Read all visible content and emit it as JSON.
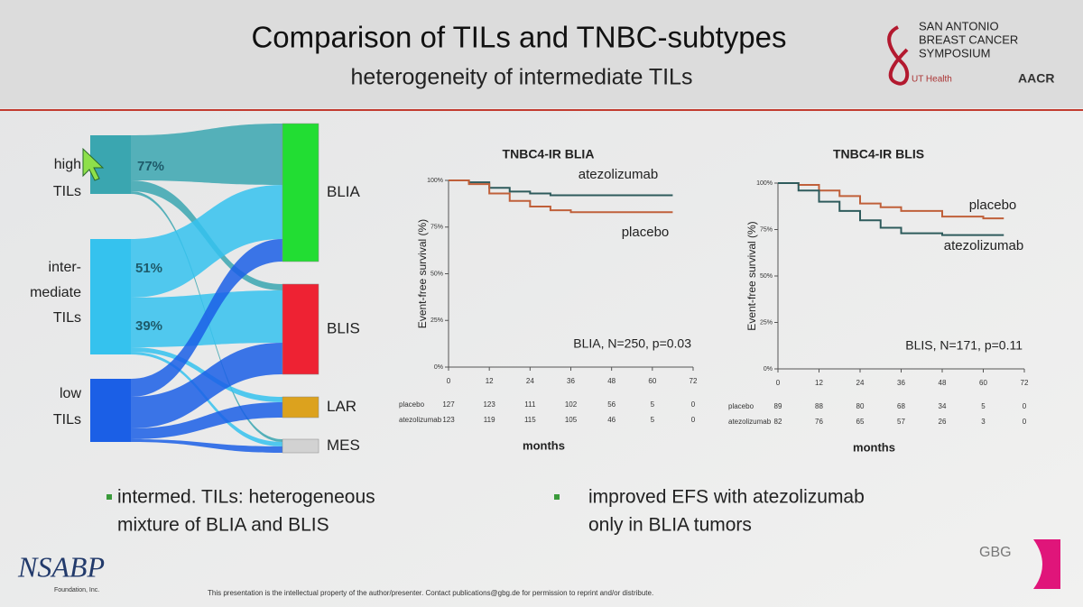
{
  "header": {
    "title": "Comparison of TILs and TNBC-subtypes",
    "subtitle": "heterogeneity of intermediate TILs",
    "logo_lines": [
      "SAN ANTONIO",
      "BREAST CANCER",
      "SYMPOSIUM"
    ],
    "partner_logos": [
      "UT Health",
      "AACR"
    ]
  },
  "sankey": {
    "sources": [
      {
        "lines": [
          "high",
          "TILs"
        ],
        "percent": "77%"
      },
      {
        "lines": [
          "inter-",
          "mediate",
          "TILs"
        ],
        "percent": "51%",
        "percent2": "39%"
      },
      {
        "lines": [
          "low",
          "TILs"
        ]
      }
    ],
    "targets": [
      "BLIA",
      "BLIS",
      "LAR",
      "MES"
    ]
  },
  "charts": [
    {
      "type": "line",
      "title": "TNBC4-IR BLIA",
      "ylabel": "Event-free survival (%)",
      "xlabel": "months",
      "annotation": "BLIA, N=250, p=0.03",
      "xlim": [
        0,
        72
      ],
      "ylim": [
        0,
        100
      ],
      "xticks": [
        0,
        12,
        24,
        36,
        48,
        60,
        72
      ],
      "yticks": [
        {
          "value": 0,
          "label": "0%"
        },
        {
          "value": 25,
          "label": "25%"
        },
        {
          "value": 50,
          "label": "50%"
        },
        {
          "value": 75,
          "label": "75%"
        },
        {
          "value": 100,
          "label": "100%"
        }
      ],
      "x": [
        0,
        6,
        12,
        18,
        24,
        30,
        36,
        48,
        60,
        66
      ],
      "series": [
        {
          "name": "atezolizumab",
          "color": "#2e5b5c",
          "values": [
            100,
            99,
            96,
            94,
            93,
            92,
            92,
            92,
            92,
            92
          ]
        },
        {
          "name": "placebo",
          "color": "#c0603a",
          "values": [
            100,
            98,
            93,
            89,
            86,
            84,
            83,
            83,
            83,
            83
          ]
        }
      ],
      "risk_table": [
        {
          "name": "placebo",
          "values": [
            "127",
            "123",
            "111",
            "102",
            "56",
            "5",
            "0"
          ]
        },
        {
          "name": "atezolizumab",
          "values": [
            "123",
            "119",
            "115",
            "105",
            "46",
            "5",
            "0"
          ]
        }
      ]
    },
    {
      "type": "line",
      "title": "TNBC4-IR BLIS",
      "ylabel": "Event-free survival (%)",
      "xlabel": "months",
      "annotation": "BLIS, N=171, p=0.11",
      "xlim": [
        0,
        72
      ],
      "ylim": [
        0,
        100
      ],
      "xticks": [
        0,
        12,
        24,
        36,
        48,
        60,
        72
      ],
      "yticks": [
        {
          "value": 0,
          "label": "0%"
        },
        {
          "value": 25,
          "label": "25%"
        },
        {
          "value": 50,
          "label": "50%"
        },
        {
          "value": 75,
          "label": "75%"
        },
        {
          "value": 100,
          "label": "100%"
        }
      ],
      "x": [
        0,
        6,
        12,
        18,
        24,
        30,
        36,
        48,
        60,
        66
      ],
      "series": [
        {
          "name": "placebo",
          "color": "#c0603a",
          "values": [
            100,
            99,
            96,
            93,
            89,
            87,
            85,
            82,
            81,
            81
          ]
        },
        {
          "name": "atezolizumab",
          "color": "#2e5b5c",
          "values": [
            100,
            96,
            90,
            85,
            80,
            76,
            73,
            72,
            72,
            72
          ]
        }
      ],
      "risk_table": [
        {
          "name": "placebo",
          "values": [
            "89",
            "88",
            "80",
            "68",
            "34",
            "5",
            "0"
          ]
        },
        {
          "name": "atezolizumab",
          "values": [
            "82",
            "76",
            "65",
            "57",
            "26",
            "3",
            "0"
          ]
        }
      ]
    }
  ],
  "bullets": [
    {
      "lines": [
        "intermed. TILs: heterogeneous",
        "mixture of BLIA and BLIS"
      ]
    },
    {
      "lines": [
        "improved EFS with atezolizumab",
        "only in BLIA tumors"
      ]
    }
  ],
  "footer": {
    "left_logo": "NSABP",
    "left_sub": "Foundation, Inc.",
    "right_logo": "GBG",
    "notice": "This presentation is the intellectual property of the author/presenter. Contact publications@gbg.de for permission to reprint and/or distribute."
  }
}
